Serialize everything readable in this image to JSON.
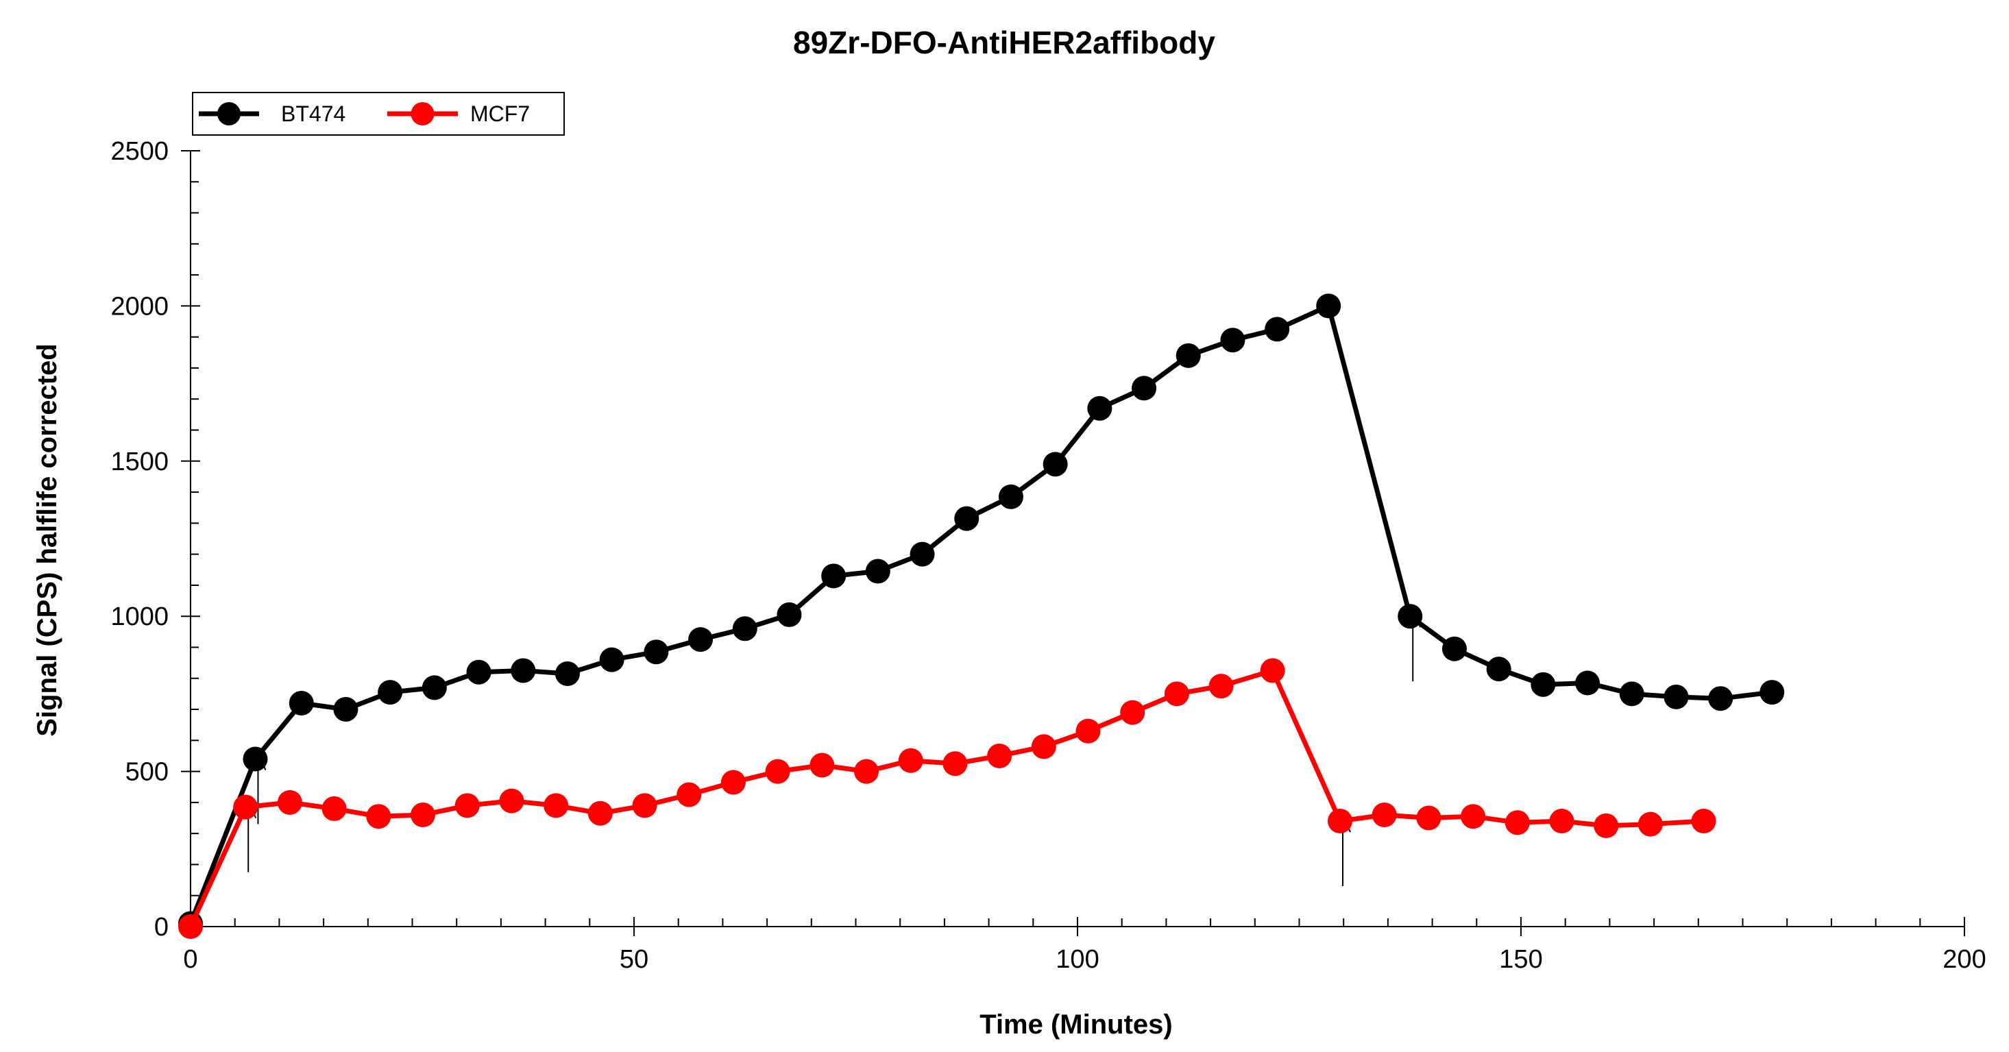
{
  "chart_data": {
    "type": "line",
    "title": "89Zr-DFO-AntiHER2affibody",
    "xlabel": "Time (Minutes)",
    "ylabel": "Signal (CPS) halflife corrected",
    "xlim": [
      0,
      200
    ],
    "ylim": [
      0,
      2500
    ],
    "x_ticks": [
      0,
      50,
      100,
      150,
      200
    ],
    "x_tick_labels": [
      "0",
      "50",
      "100",
      "150",
      "200"
    ],
    "y_ticks": [
      0,
      500,
      1000,
      1500,
      2000,
      2500
    ],
    "y_tick_labels": [
      "0",
      "500",
      "1000",
      "1500",
      "2000",
      "2500"
    ],
    "x_minor_step": 5,
    "y_minor_step": 100,
    "legend_position": "top-left",
    "series": [
      {
        "name": "BT474",
        "color": "#000000",
        "x": [
          0,
          7.3,
          12.5,
          17.5,
          22.5,
          27.5,
          32.5,
          37.5,
          42.5,
          47.5,
          52.5,
          57.5,
          62.5,
          67.5,
          72.5,
          77.5,
          82.5,
          87.5,
          92.5,
          97.5,
          102.5,
          107.5,
          112.5,
          117.5,
          122.5,
          128.3,
          137.5,
          142.5,
          147.5,
          152.5,
          157.5,
          162.5,
          167.5,
          172.5,
          178.3
        ],
        "y": [
          10,
          540,
          720,
          700,
          755,
          770,
          820,
          825,
          815,
          860,
          885,
          925,
          960,
          1005,
          1130,
          1145,
          1200,
          1315,
          1385,
          1490,
          1670,
          1735,
          1840,
          1890,
          1925,
          2000,
          1000,
          895,
          830,
          780,
          785,
          750,
          740,
          735,
          755
        ]
      },
      {
        "name": "MCF7",
        "color": "#ff0000",
        "x": [
          0,
          6.2,
          11.2,
          16.2,
          21.2,
          26.2,
          31.2,
          36.2,
          41.2,
          46.2,
          51.2,
          56.2,
          61.2,
          66.2,
          71.2,
          76.2,
          81.2,
          86.2,
          91.2,
          96.2,
          101.2,
          106.2,
          111.2,
          116.2,
          122.0,
          129.6,
          134.6,
          139.6,
          144.6,
          149.6,
          154.6,
          159.6,
          164.6,
          170.6
        ],
        "y": [
          0,
          385,
          400,
          380,
          355,
          360,
          390,
          405,
          390,
          365,
          390,
          425,
          465,
          500,
          520,
          500,
          535,
          525,
          550,
          580,
          630,
          690,
          750,
          775,
          825,
          340,
          360,
          350,
          355,
          335,
          340,
          325,
          330,
          340
        ]
      }
    ],
    "annotations": [
      {
        "type": "arrow",
        "series": "BT474",
        "x": 7.3,
        "y": 540
      },
      {
        "type": "arrow",
        "series": "MCF7",
        "x": 6.2,
        "y": 385
      },
      {
        "type": "arrow",
        "series": "BT474",
        "x": 137.5,
        "y": 1000
      },
      {
        "type": "arrow",
        "series": "MCF7",
        "x": 129.6,
        "y": 340
      }
    ]
  }
}
